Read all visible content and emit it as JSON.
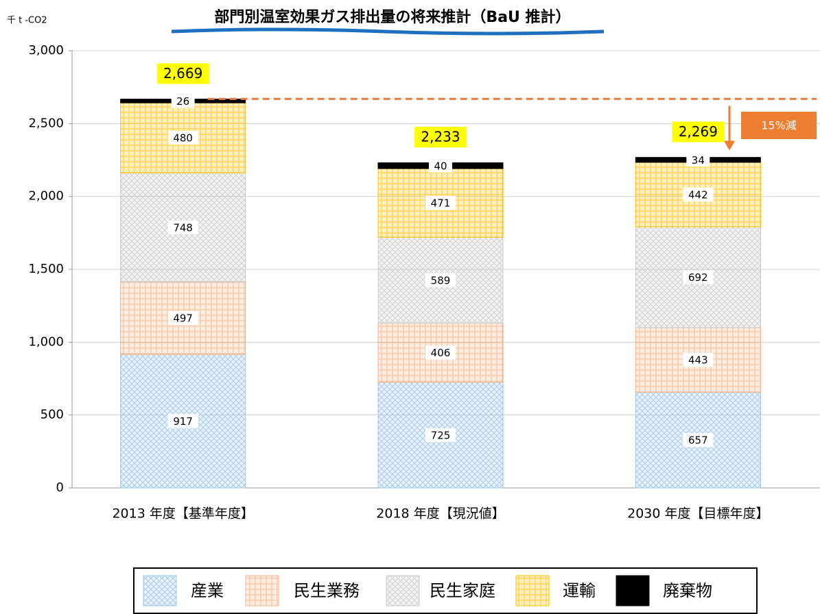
{
  "chart_data": {
    "type": "stacked_bar",
    "title": "部門別温室効果ガス排出量の将来推計（BaU 推計）",
    "y_axis_label": "千 t -CO2",
    "categories": [
      "2013 年度【基準年度】",
      "2018 年度【現況値】",
      "2030 年度【目標年度】"
    ],
    "series": [
      {
        "name": "産業",
        "color": "#9dc3e6",
        "values": [
          917,
          725,
          657
        ]
      },
      {
        "name": "民生業務",
        "color": "#f4b183",
        "values": [
          497,
          406,
          443
        ]
      },
      {
        "name": "民生家庭",
        "color": "#c9c9c9",
        "values": [
          748,
          589,
          692
        ]
      },
      {
        "name": "運輸",
        "color": "#ffc000",
        "values": [
          480,
          471,
          442
        ]
      },
      {
        "name": "廃棄物",
        "color": "#000000",
        "values": [
          26,
          40,
          34
        ]
      }
    ],
    "totals": [
      2669,
      2233,
      2269
    ],
    "total_labels": [
      "2,669",
      "2,233",
      "2,269"
    ],
    "annotation": "15%減",
    "ylim": [
      0,
      3000
    ],
    "yticks": [
      0,
      500,
      {
        "value": 1000,
        "label": "1,000"
      },
      {
        "value": 1500,
        "label": "1,500"
      },
      {
        "value": 2000,
        "label": "2,000"
      },
      {
        "value": 2500,
        "label": "2,500"
      },
      {
        "value": 3000,
        "label": "3,000"
      }
    ],
    "grid": true,
    "legend": "bottom"
  }
}
